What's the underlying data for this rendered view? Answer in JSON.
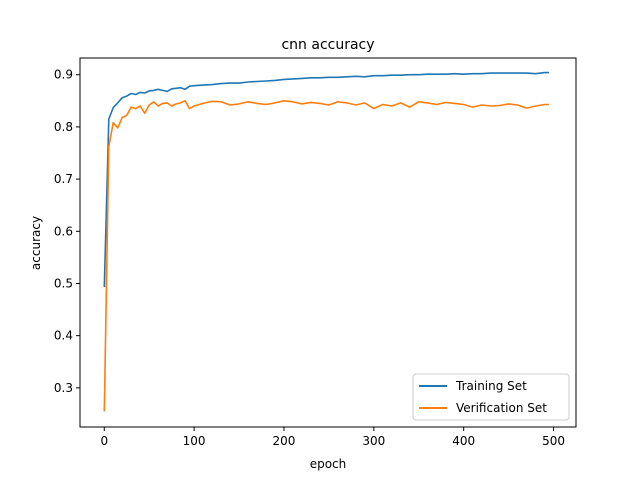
{
  "chart_data": {
    "type": "line",
    "title": "cnn accuracy",
    "xlabel": "epoch",
    "ylabel": "accuracy",
    "xlim": [
      -27,
      525
    ],
    "ylim": [
      0.225,
      0.932
    ],
    "xticks": [
      0,
      100,
      200,
      300,
      400,
      500
    ],
    "yticks": [
      0.3,
      0.4,
      0.5,
      0.6,
      0.7,
      0.8,
      0.9
    ],
    "grid": false,
    "legend_position": "lower right",
    "series": [
      {
        "name": "Training Set",
        "color": "#1f77b4",
        "x": [
          0,
          5,
          10,
          15,
          20,
          25,
          30,
          35,
          40,
          45,
          50,
          55,
          60,
          65,
          70,
          75,
          80,
          85,
          90,
          95,
          100,
          110,
          120,
          130,
          140,
          150,
          160,
          170,
          180,
          190,
          200,
          210,
          220,
          230,
          240,
          250,
          260,
          270,
          280,
          290,
          300,
          310,
          320,
          330,
          340,
          350,
          360,
          370,
          380,
          390,
          400,
          410,
          420,
          430,
          440,
          450,
          460,
          470,
          480,
          490,
          495
        ],
        "y": [
          0.493,
          0.815,
          0.837,
          0.846,
          0.856,
          0.859,
          0.864,
          0.862,
          0.866,
          0.865,
          0.869,
          0.87,
          0.872,
          0.87,
          0.868,
          0.873,
          0.874,
          0.875,
          0.872,
          0.878,
          0.879,
          0.88,
          0.881,
          0.883,
          0.884,
          0.884,
          0.886,
          0.887,
          0.888,
          0.889,
          0.891,
          0.892,
          0.893,
          0.894,
          0.894,
          0.895,
          0.895,
          0.896,
          0.897,
          0.896,
          0.898,
          0.898,
          0.899,
          0.899,
          0.9,
          0.9,
          0.901,
          0.901,
          0.901,
          0.902,
          0.901,
          0.902,
          0.902,
          0.903,
          0.903,
          0.903,
          0.903,
          0.903,
          0.902,
          0.904,
          0.904
        ]
      },
      {
        "name": "Verification Set",
        "color": "#ff7f0e",
        "x": [
          0,
          5,
          10,
          15,
          20,
          25,
          30,
          35,
          40,
          45,
          50,
          55,
          60,
          65,
          70,
          75,
          80,
          85,
          90,
          95,
          100,
          110,
          120,
          130,
          140,
          150,
          160,
          170,
          180,
          190,
          200,
          210,
          220,
          230,
          240,
          250,
          260,
          270,
          280,
          290,
          300,
          310,
          320,
          330,
          340,
          350,
          360,
          370,
          380,
          390,
          400,
          410,
          420,
          430,
          440,
          450,
          460,
          470,
          480,
          490,
          495
        ],
        "y": [
          0.255,
          0.762,
          0.808,
          0.798,
          0.818,
          0.822,
          0.838,
          0.835,
          0.84,
          0.826,
          0.842,
          0.848,
          0.84,
          0.845,
          0.846,
          0.84,
          0.844,
          0.846,
          0.85,
          0.835,
          0.84,
          0.845,
          0.849,
          0.848,
          0.842,
          0.844,
          0.848,
          0.845,
          0.843,
          0.846,
          0.85,
          0.848,
          0.844,
          0.847,
          0.845,
          0.842,
          0.848,
          0.846,
          0.842,
          0.846,
          0.835,
          0.843,
          0.84,
          0.846,
          0.838,
          0.848,
          0.846,
          0.843,
          0.847,
          0.845,
          0.843,
          0.838,
          0.842,
          0.84,
          0.841,
          0.844,
          0.842,
          0.836,
          0.84,
          0.843,
          0.843
        ]
      }
    ]
  }
}
